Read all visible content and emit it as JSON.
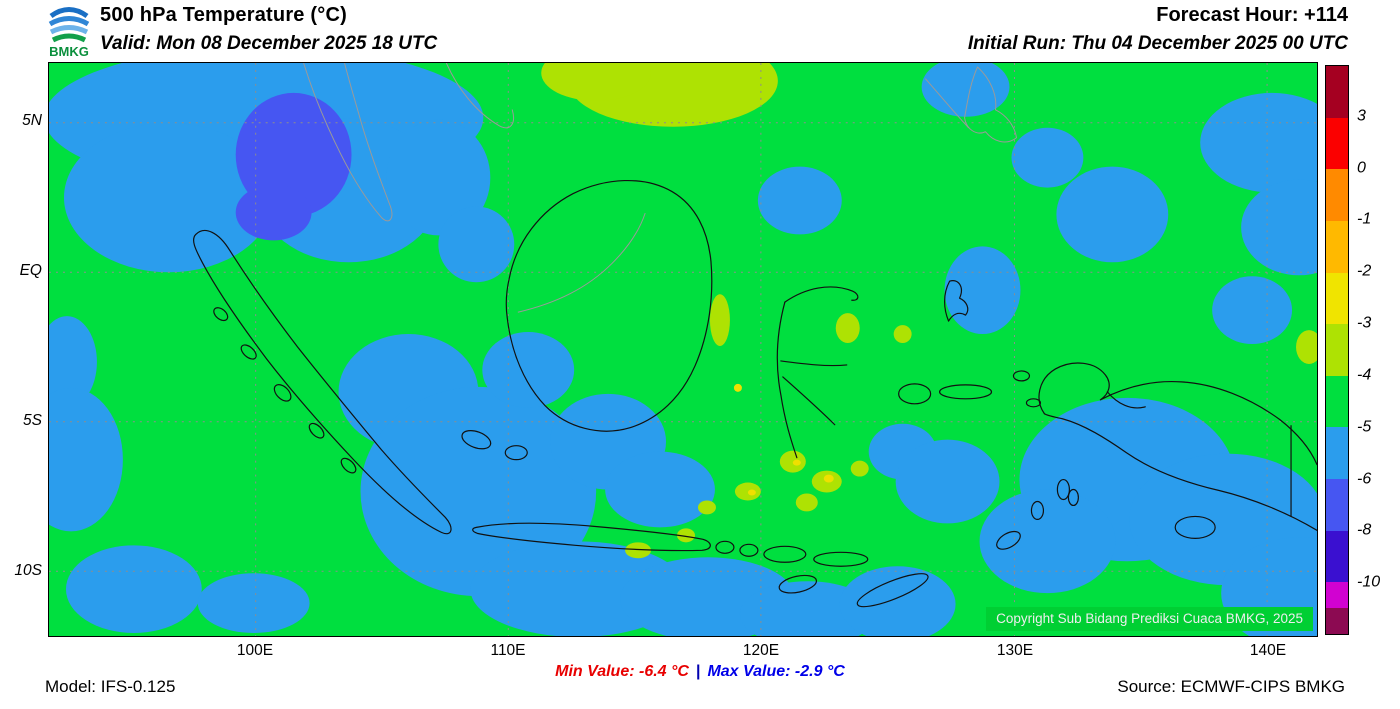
{
  "colors": {
    "green": "#00df3f",
    "blue": "#2b9ded",
    "violet": "#4656f2",
    "ygreen": "#aee203",
    "yellow": "#efe000",
    "coast": "#111111",
    "foreign": "#9a9a9a",
    "grid": "#8d8d8d",
    "copybg": "#00cf33",
    "copytext": "#eeeeee",
    "min": "#e80000",
    "max": "#0000e8",
    "sep": "#0000b0"
  },
  "header": {
    "logo_text": "BMKG",
    "title": "500 hPa Temperature (°C)",
    "valid": "Valid: Mon 08 December 2025 18 UTC",
    "forecast_hour": "Forecast Hour: +114",
    "initial_run": "Initial Run: Thu 04 December 2025 00 UTC"
  },
  "map": {
    "copyright": "Copyright Sub Bidang Prediksi Cuaca BMKG, 2025",
    "lat_labels": [
      "5N",
      "EQ",
      "5S",
      "10S"
    ],
    "lon_labels": [
      "100E",
      "110E",
      "120E",
      "130E",
      "140E"
    ]
  },
  "footer": {
    "model": "Model: IFS-0.125",
    "min_value": "Min Value: -6.4 °C",
    "separator": "|",
    "max_value": "Max Value: -2.9 °C",
    "source": "Source: ECMWF-CIPS BMKG"
  },
  "chart_data": {
    "type": "heatmap",
    "title": "500 hPa Temperature (°C)",
    "valid": "Mon 08 December 2025 18 UTC",
    "initial_run": "Thu 04 December 2025 00 UTC",
    "forecast_hour": "+114",
    "model": "IFS-0.125",
    "source": "ECMWF-CIPS BMKG",
    "min_value_c": -6.4,
    "max_value_c": -2.9,
    "x_ticks": [
      "100E",
      "110E",
      "120E",
      "130E",
      "140E"
    ],
    "y_ticks": [
      "5N",
      "EQ",
      "5S",
      "10S"
    ],
    "approx_lon_range_deg": [
      92,
      142
    ],
    "approx_lat_range_deg": [
      -12,
      7
    ],
    "grid": "dashed",
    "legend_position": "right vertical colorbar",
    "colorbar": {
      "unit": "°C",
      "tick_labels": [
        "3",
        "0",
        "-1",
        "-2",
        "-3",
        "-4",
        "-5",
        "-6",
        "-8",
        "-10"
      ],
      "segments": [
        {
          "color": "#a50021",
          "flex": 1,
          "range": "above 3"
        },
        {
          "color": "#fb0000",
          "flex": 1,
          "range": "0 to 3"
        },
        {
          "color": "#ff8a00",
          "flex": 1,
          "range": "-1 to 0"
        },
        {
          "color": "#ffb900",
          "flex": 1,
          "range": "-2 to -1"
        },
        {
          "color": "#f0e400",
          "flex": 1,
          "range": "-3 to -2"
        },
        {
          "color": "#aee203",
          "flex": 1,
          "range": "-4 to -3"
        },
        {
          "color": "#00df3f",
          "flex": 1,
          "range": "-5 to -4"
        },
        {
          "color": "#2b9ded",
          "flex": 1,
          "range": "-6 to -5"
        },
        {
          "color": "#4656f2",
          "flex": 1,
          "range": "-8 to -6"
        },
        {
          "color": "#3a10d0",
          "flex": 1,
          "range": "-10 to -8"
        },
        {
          "color": "#d102d1",
          "flex": 0.5,
          "range": "-12 to -10"
        },
        {
          "color": "#8c0a52",
          "flex": 0.5,
          "range": "below -12"
        }
      ]
    },
    "field_summary": {
      "dominant": "-5 to -4 °C (green) over most of the Indonesian domain",
      "cool_patches": "-6 to -5 °C (blue) northwest of Sumatra, southwest of Sumatra, south of Java, Banda/Arafura seas and southern Papua",
      "coldest": "-8 to -6 °C (blue-violet) small core over northern Sumatra / Malacca Strait",
      "warm_patches": "-4 to -3 °C (yellow-green) north of Borneo near the top edge and small spots around Sulawesi, the Flores Sea and eastern edge"
    }
  }
}
